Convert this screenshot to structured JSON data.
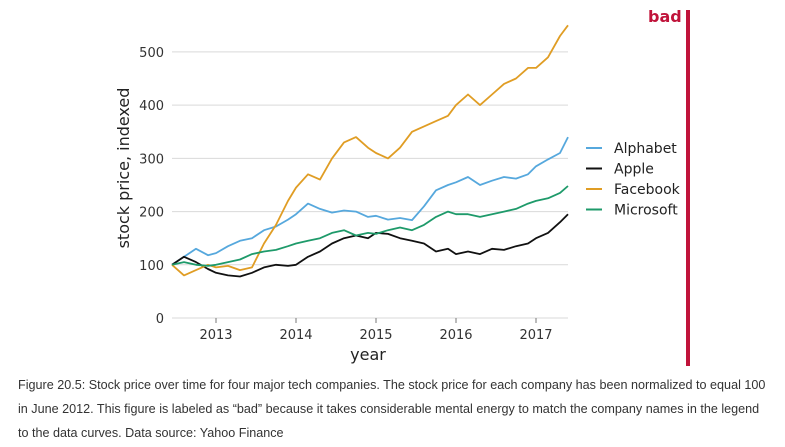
{
  "chart_data": {
    "type": "line",
    "xlabel": "year",
    "ylabel": "stock price, indexed",
    "xlim": [
      2012.45,
      2017.4
    ],
    "ylim": [
      0,
      560
    ],
    "x_ticks": [
      2013,
      2014,
      2015,
      2016,
      2017
    ],
    "x_tick_labels": [
      "2013",
      "2014",
      "2015",
      "2016",
      "2017"
    ],
    "y_ticks": [
      0,
      100,
      200,
      300,
      400,
      500
    ],
    "y_tick_labels": [
      "0",
      "100",
      "200",
      "300",
      "400",
      "500"
    ],
    "grid": "horizontal",
    "legend_position": "right",
    "x": [
      2012.45,
      2012.6,
      2012.75,
      2012.9,
      2013.0,
      2013.15,
      2013.3,
      2013.45,
      2013.6,
      2013.75,
      2013.9,
      2014.0,
      2014.15,
      2014.3,
      2014.45,
      2014.6,
      2014.75,
      2014.9,
      2015.0,
      2015.15,
      2015.3,
      2015.45,
      2015.6,
      2015.75,
      2015.9,
      2016.0,
      2016.15,
      2016.3,
      2016.45,
      2016.6,
      2016.75,
      2016.9,
      2017.0,
      2017.15,
      2017.3,
      2017.4
    ],
    "series": [
      {
        "name": "Alphabet",
        "color": "#56a8dd",
        "values": [
          100,
          115,
          130,
          118,
          122,
          135,
          145,
          150,
          165,
          172,
          185,
          195,
          215,
          205,
          198,
          202,
          200,
          190,
          192,
          185,
          188,
          184,
          210,
          240,
          250,
          255,
          265,
          250,
          258,
          265,
          262,
          270,
          285,
          298,
          310,
          340
        ]
      },
      {
        "name": "Apple",
        "color": "#111111",
        "values": [
          100,
          115,
          105,
          92,
          85,
          80,
          78,
          85,
          95,
          100,
          98,
          100,
          115,
          125,
          140,
          150,
          155,
          150,
          160,
          158,
          150,
          145,
          140,
          125,
          130,
          120,
          125,
          120,
          130,
          128,
          135,
          140,
          150,
          160,
          180,
          195
        ]
      },
      {
        "name": "Facebook",
        "color": "#e09d24",
        "values": [
          100,
          80,
          90,
          100,
          95,
          98,
          90,
          95,
          140,
          175,
          220,
          245,
          270,
          260,
          300,
          330,
          340,
          320,
          310,
          300,
          320,
          350,
          360,
          370,
          380,
          400,
          420,
          400,
          420,
          440,
          450,
          470,
          470,
          490,
          530,
          550
        ]
      },
      {
        "name": "Microsoft",
        "color": "#1e9a6a",
        "values": [
          100,
          105,
          100,
          98,
          100,
          105,
          110,
          120,
          125,
          128,
          135,
          140,
          145,
          150,
          160,
          165,
          155,
          160,
          158,
          165,
          170,
          165,
          175,
          190,
          200,
          195,
          195,
          190,
          195,
          200,
          205,
          215,
          220,
          225,
          235,
          248
        ]
      }
    ]
  },
  "badge": {
    "label": "bad",
    "color": "#c0133a"
  },
  "caption": "Figure 20.5: Stock price over time for four major tech companies. The stock price for each company has been normalized to equal 100 in June 2012. This figure is labeled as “bad” because it takes considerable mental energy to match the company names in the legend to the data curves. Data source: Yahoo Finance"
}
